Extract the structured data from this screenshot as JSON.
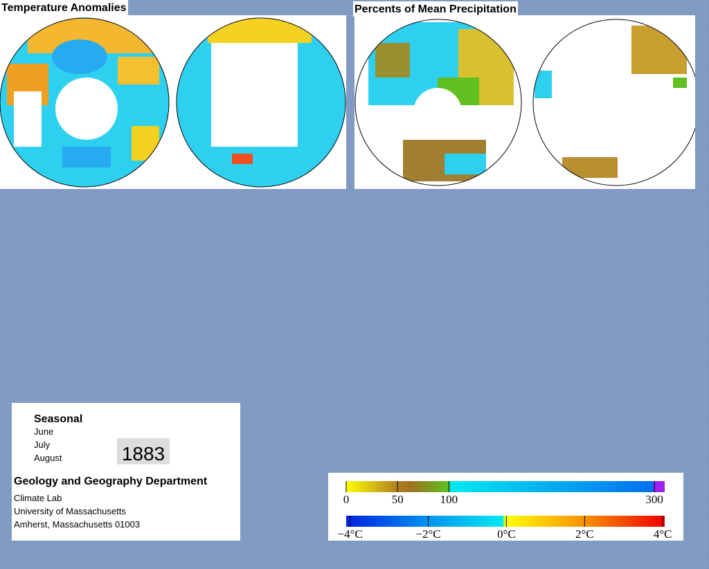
{
  "panels": [
    {
      "title": "Temperature Anomalies"
    },
    {
      "title": "Percents of Mean Precipitation"
    }
  ],
  "info": {
    "season": "Seasonal",
    "months": [
      "June",
      "July",
      "August"
    ],
    "year": "1883",
    "department": "Geology and Geography Department",
    "address": [
      "Climate Lab",
      "University of Massachusetts",
      "Amherst, Massachusetts 01003"
    ]
  },
  "legend": {
    "precipitation": {
      "lim": [
        0,
        310
      ],
      "ticks": [
        0,
        50,
        100,
        300
      ]
    },
    "temperature": {
      "lim": [
        -4.1,
        4.05
      ],
      "ticks": [
        {
          "value": -4,
          "label": "−4°C"
        },
        {
          "value": -2,
          "label": "−2°C"
        },
        {
          "value": 0,
          "label": "0°C"
        },
        {
          "value": 2,
          "label": "2°C"
        },
        {
          "value": 4,
          "label": "4°C"
        }
      ]
    }
  }
}
